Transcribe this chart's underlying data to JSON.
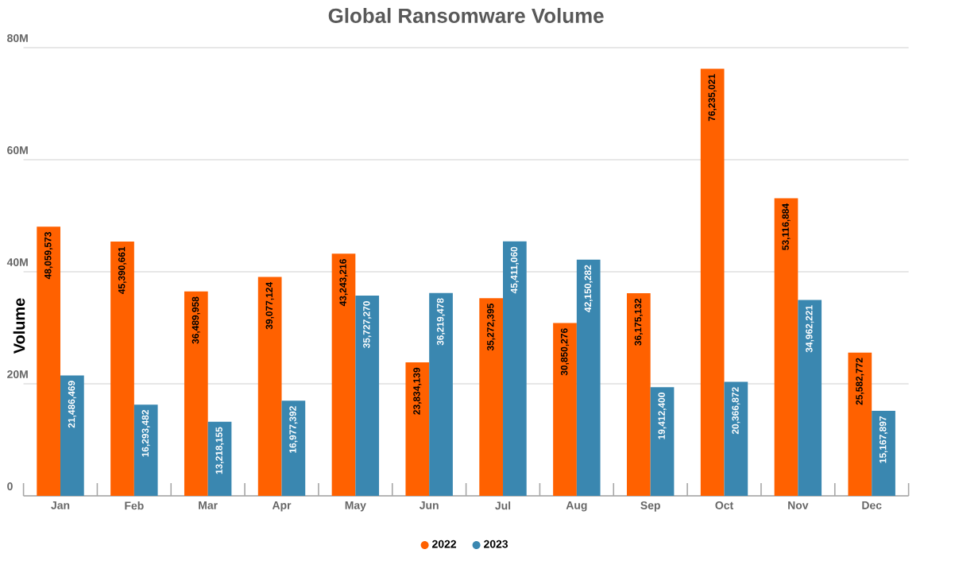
{
  "chart_data": {
    "type": "bar",
    "title": "Global Ransomware Volume",
    "ylabel": "Volume",
    "categories": [
      "Jan",
      "Feb",
      "Mar",
      "Apr",
      "May",
      "Jun",
      "Jul",
      "Aug",
      "Sep",
      "Oct",
      "Nov",
      "Dec"
    ],
    "series": [
      {
        "name": "2022",
        "color": "#ff6100",
        "values": [
          48059573,
          45390661,
          36489958,
          39077124,
          43243216,
          23834139,
          35272395,
          30850276,
          36175132,
          76235021,
          53116884,
          25582772
        ],
        "value_labels": [
          "48,059,573",
          "45,390,661",
          "36,489,958",
          "39,077,124",
          "43,243,216",
          "23,834,139",
          "35,272,395",
          "30,850,276",
          "36,175,132",
          "76,235,021",
          "53,116,884",
          "25,582,772"
        ]
      },
      {
        "name": "2023",
        "color": "#3a87b0",
        "values": [
          21486469,
          16293482,
          13218155,
          16977392,
          35727270,
          36219478,
          45411060,
          42150282,
          19412400,
          20366872,
          34962221,
          15167897
        ],
        "value_labels": [
          "21,486,469",
          "16,293,482",
          "13,218,155",
          "16,977,392",
          "35,727,270",
          "36,219,478",
          "45,411,060",
          "42,150,282",
          "19,412,400",
          "20,366,872",
          "34,962,221",
          "15,167,897"
        ]
      }
    ],
    "ylim": [
      0,
      80000000
    ],
    "yticks": [
      {
        "value": 0,
        "label": "0"
      },
      {
        "value": 20000000,
        "label": "20M"
      },
      {
        "value": 40000000,
        "label": "40M"
      },
      {
        "value": 60000000,
        "label": "60M"
      },
      {
        "value": 80000000,
        "label": "80M"
      }
    ],
    "grid": "y",
    "legend": "bottom"
  }
}
